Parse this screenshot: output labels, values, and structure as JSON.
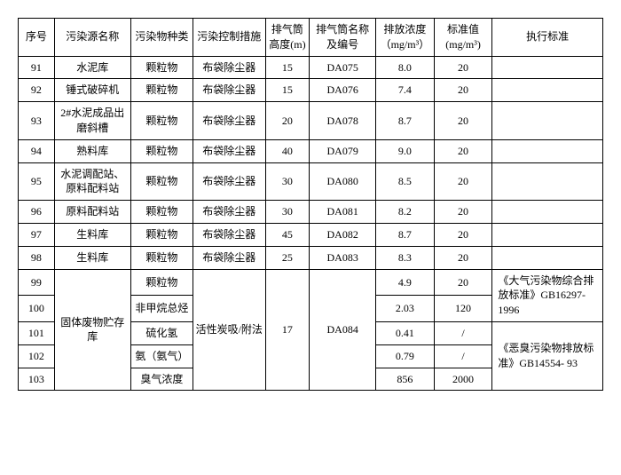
{
  "headers": {
    "seq": "序号",
    "name": "污染源名称",
    "type": "污染物种类",
    "control": "污染控制措施",
    "height": "排气筒高度(m)",
    "code": "排气筒名称及编号",
    "conc": "排放浓度（mg/m³）",
    "std": "标准值(mg/m³)",
    "exec": "执行标准"
  },
  "rows": [
    {
      "seq": "91",
      "name": "水泥库",
      "type": "颗粒物",
      "control": "布袋除尘器",
      "height": "15",
      "code": "DA075",
      "conc": "8.0",
      "std": "20",
      "exec": ""
    },
    {
      "seq": "92",
      "name": "锤式破碎机",
      "type": "颗粒物",
      "control": "布袋除尘器",
      "height": "15",
      "code": "DA076",
      "conc": "7.4",
      "std": "20",
      "exec": ""
    },
    {
      "seq": "93",
      "name": "2#水泥成品出磨斜槽",
      "type": "颗粒物",
      "control": "布袋除尘器",
      "height": "20",
      "code": "DA078",
      "conc": "8.7",
      "std": "20",
      "exec": ""
    },
    {
      "seq": "94",
      "name": "熟料库",
      "type": "颗粒物",
      "control": "布袋除尘器",
      "height": "40",
      "code": "DA079",
      "conc": "9.0",
      "std": "20",
      "exec": ""
    },
    {
      "seq": "95",
      "name": "水泥调配站、原料配料站",
      "type": "颗粒物",
      "control": "布袋除尘器",
      "height": "30",
      "code": "DA080",
      "conc": "8.5",
      "std": "20",
      "exec": ""
    },
    {
      "seq": "96",
      "name": "原料配料站",
      "type": "颗粒物",
      "control": "布袋除尘器",
      "height": "30",
      "code": "DA081",
      "conc": "8.2",
      "std": "20",
      "exec": ""
    },
    {
      "seq": "97",
      "name": "生料库",
      "type": "颗粒物",
      "control": "布袋除尘器",
      "height": "45",
      "code": "DA082",
      "conc": "8.7",
      "std": "20",
      "exec": ""
    },
    {
      "seq": "98",
      "name": "生料库",
      "type": "颗粒物",
      "control": "布袋除尘器",
      "height": "25",
      "code": "DA083",
      "conc": "8.3",
      "std": "20",
      "exec": ""
    }
  ],
  "merged": {
    "name": "固体废物贮存库",
    "control": "活性炭吸/附法",
    "height": "17",
    "code": "DA084",
    "items": [
      {
        "seq": "99",
        "type": "颗粒物",
        "conc": "4.9",
        "std": "20"
      },
      {
        "seq": "100",
        "type": "非甲烷总烃",
        "conc": "2.03",
        "std": "120"
      },
      {
        "seq": "101",
        "type": "硫化氢",
        "conc": "0.41",
        "std": "/"
      },
      {
        "seq": "102",
        "type": "氨（氨气）",
        "conc": "0.79",
        "std": "/"
      },
      {
        "seq": "103",
        "type": "臭气浓度",
        "conc": "856",
        "std": "2000"
      }
    ],
    "exec1": "《大气污染物综合排放标准》GB16297-1996",
    "exec2": "《恶臭污染物排放标准》GB14554- 93"
  }
}
